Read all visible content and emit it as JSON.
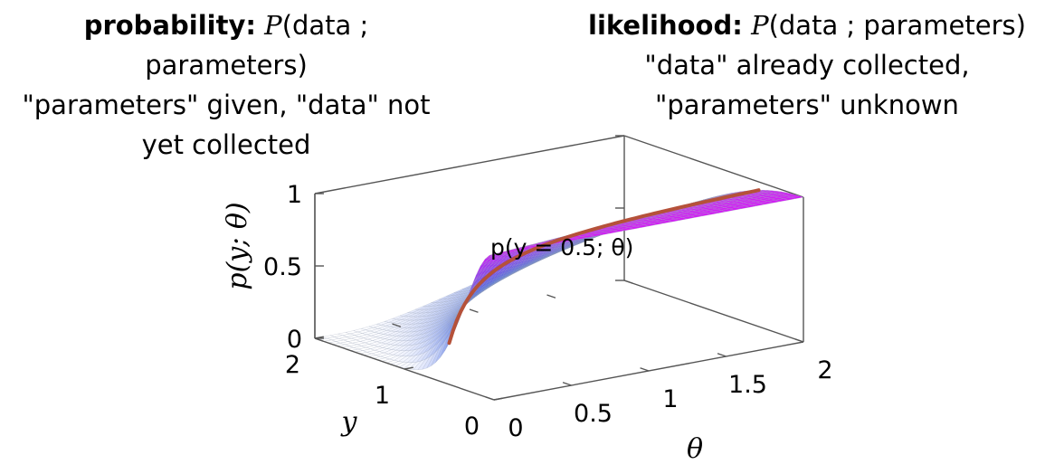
{
  "captions": {
    "left": {
      "term": "probability:",
      "expr_p": "P",
      "expr_args": "(data ; parameters)",
      "desc": "\"parameters\" given, \"data\" not yet collected"
    },
    "right": {
      "term": "likelihood:",
      "expr_p": "P",
      "expr_args": "(data ; parameters)",
      "desc": "\"data\" already collected, \"parameters\" unknown"
    }
  },
  "chart_data": {
    "type": "surface",
    "function": "p(y;θ) = exp(-y²/(2·(0.1+θ)))",
    "xlabel": "θ",
    "ylabel": "y",
    "zlabel": "p(y; θ)",
    "xlim": [
      0,
      2
    ],
    "ylim": [
      0,
      2
    ],
    "zlim": [
      0,
      1
    ],
    "x_ticks": [
      "0",
      "0.5",
      "1",
      "1.5",
      "2"
    ],
    "y_ticks": [
      "0",
      "1",
      "2"
    ],
    "z_ticks": [
      "0",
      "0.5",
      "1"
    ],
    "highlight_curve": {
      "label": "p(y = 0.5; θ)",
      "y": 0.5,
      "color": "#b5513a"
    },
    "colormap": [
      "#ffffff",
      "#3d63ea",
      "#d21ef5"
    ],
    "grid": "mesh"
  }
}
